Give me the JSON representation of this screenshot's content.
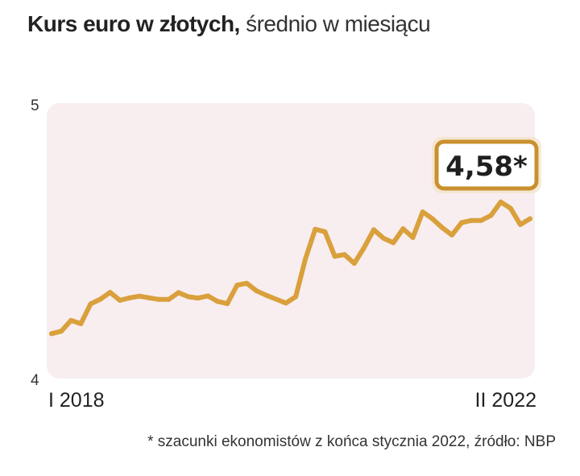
{
  "header": {
    "title_bold": "Kurs euro w złotych,",
    "title_light": "średnio w miesiącu"
  },
  "colors": {
    "line": "#D9A03C",
    "plot_background": "#F8EEF0",
    "callout_border": "#C9902E"
  },
  "footnote": "* szacunki ekonomistów z końca stycznia 2022, źródło: NBP",
  "chart_data": {
    "type": "line",
    "title": "Kurs euro w złotych, średnio w miesiącu",
    "x_start_label": "I 2018",
    "x_end_label": "II 2022",
    "ylim": [
      4,
      5
    ],
    "ytick_labels": [
      "4",
      "5"
    ],
    "callout_label": "4,58*",
    "values": [
      4.163,
      4.172,
      4.211,
      4.199,
      4.271,
      4.288,
      4.313,
      4.284,
      4.293,
      4.299,
      4.293,
      4.287,
      4.287,
      4.312,
      4.297,
      4.292,
      4.3,
      4.28,
      4.272,
      4.339,
      4.346,
      4.318,
      4.302,
      4.288,
      4.274,
      4.297,
      4.435,
      4.542,
      4.533,
      4.444,
      4.45,
      4.418,
      4.475,
      4.54,
      4.509,
      4.493,
      4.544,
      4.512,
      4.605,
      4.58,
      4.548,
      4.521,
      4.566,
      4.574,
      4.574,
      4.592,
      4.641,
      4.618,
      4.559,
      4.58
    ]
  }
}
